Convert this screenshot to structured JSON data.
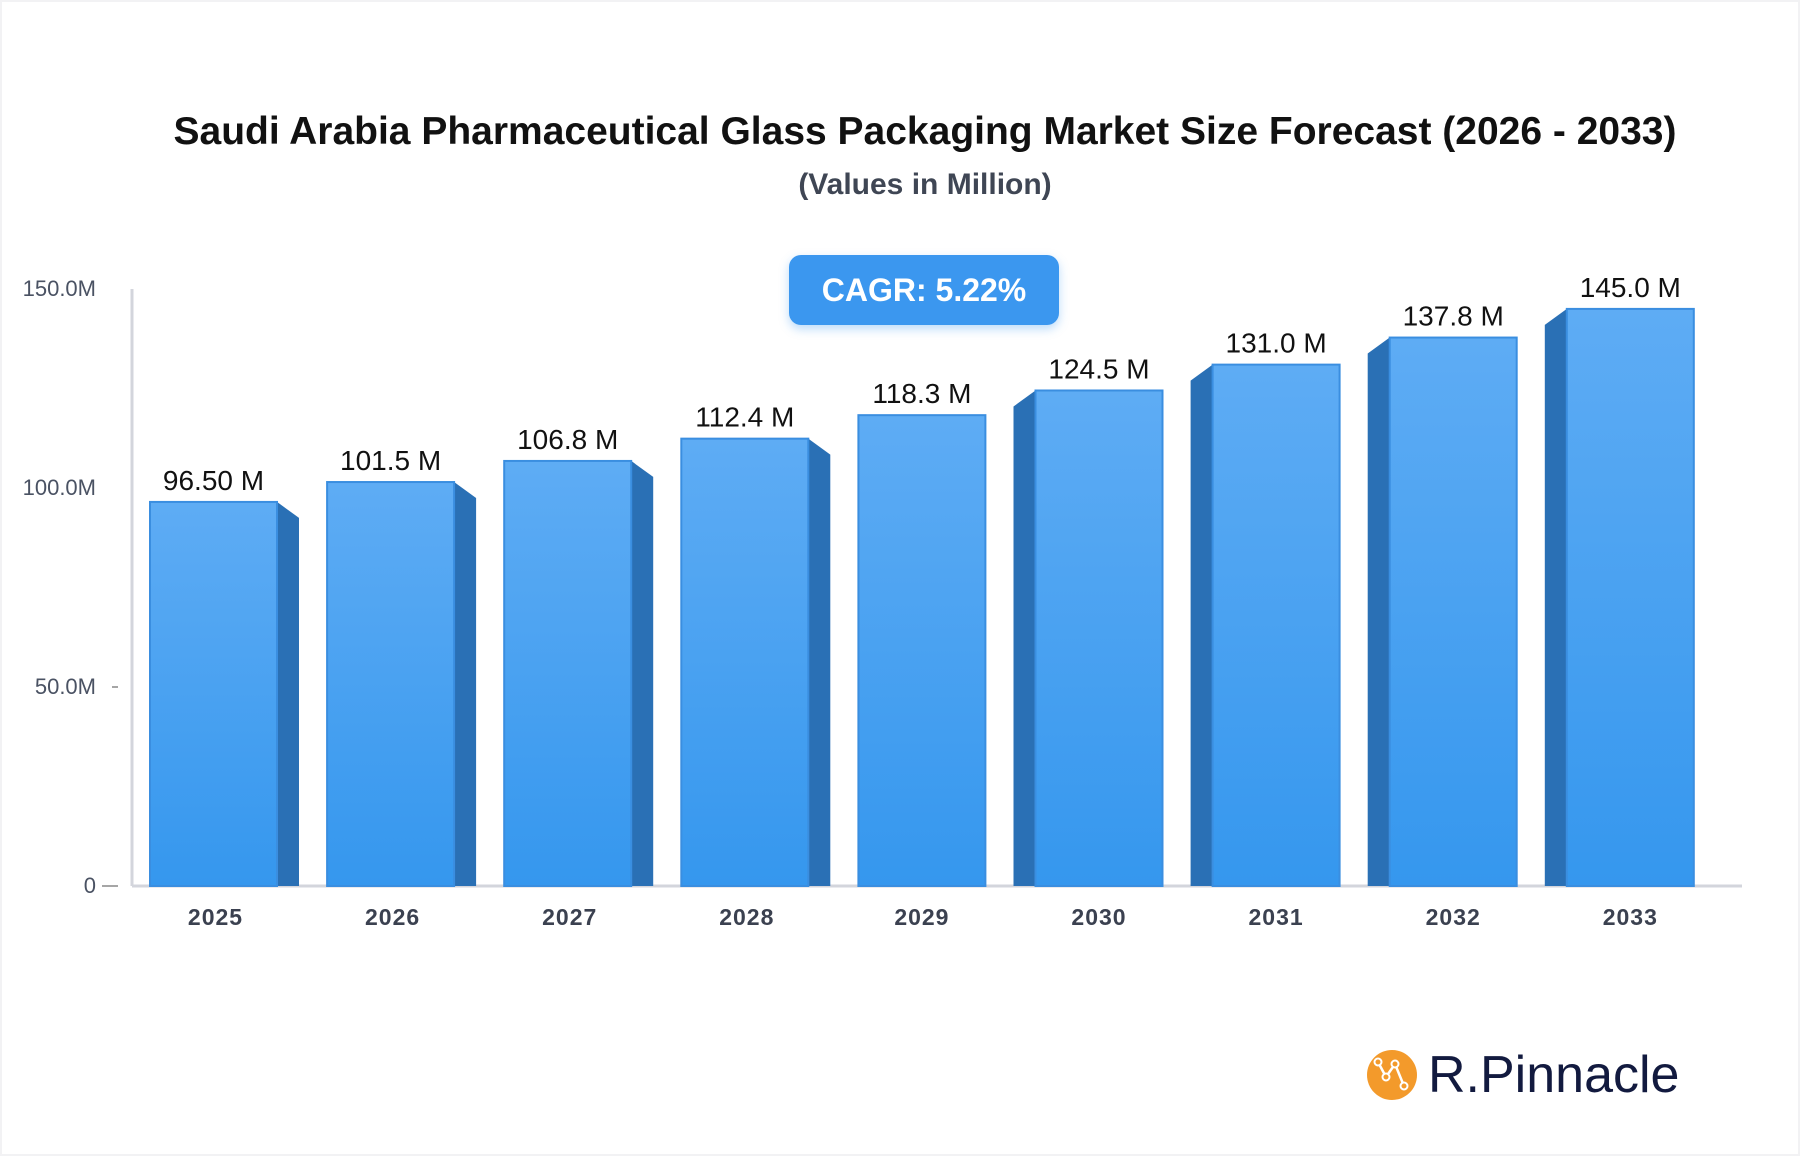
{
  "chart_data": {
    "type": "bar",
    "title": "Saudi Arabia Pharmaceutical Glass Packaging Market Size Forecast (2026 - 2033)",
    "subtitle": "(Values in Million)",
    "categories": [
      "2025",
      "2026",
      "2027",
      "2028",
      "2029",
      "2030",
      "2031",
      "2032",
      "2033"
    ],
    "values": [
      96.5,
      101.5,
      106.8,
      112.4,
      118.3,
      124.5,
      131.0,
      137.8,
      145.0
    ],
    "data_labels": [
      "96.50 M",
      "101.5 M",
      "106.8 M",
      "112.4 M",
      "118.3 M",
      "124.5 M",
      "131.0 M",
      "137.8 M",
      "145.0 M"
    ],
    "y_ticks": [
      0,
      50,
      100,
      150
    ],
    "y_tick_labels": [
      "0",
      "50.0M",
      "100.0M",
      "150.0M"
    ],
    "ylim": [
      0,
      150
    ],
    "grid": false,
    "bar_color": "#3b97ef",
    "bar_side_color": "#2a70b5"
  },
  "cagr": "CAGR: 5.22%",
  "logo": {
    "text": "R.Pinnacle",
    "color": "#f39a2b"
  }
}
